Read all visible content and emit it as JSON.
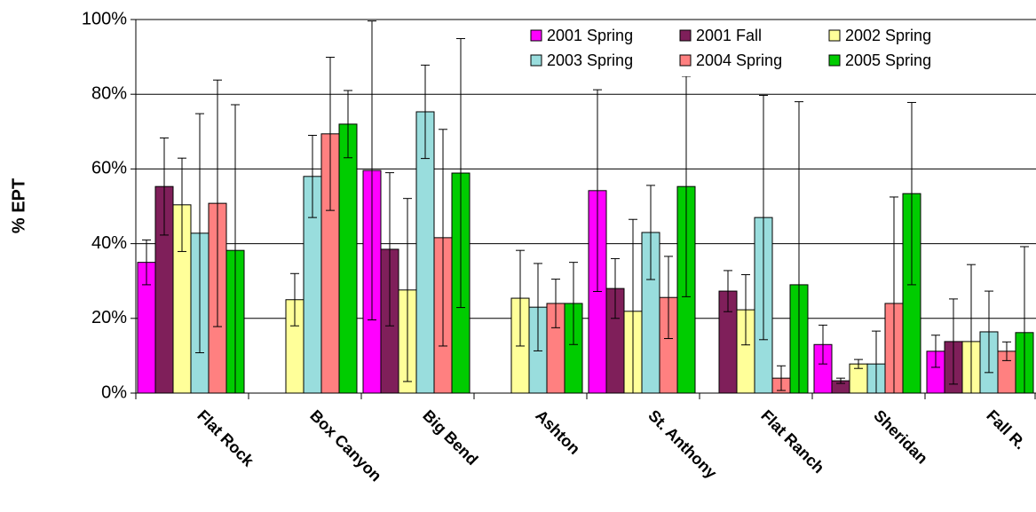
{
  "chart_data": {
    "type": "bar",
    "ylabel": "% EPT",
    "categories": [
      "Flat Rock",
      "Box Canyon",
      "Big Bend",
      "Ashton",
      "St. Anthony",
      "Flat Ranch",
      "Sheridan",
      "Fall R."
    ],
    "ylim": [
      0,
      100
    ],
    "yticks": [
      {
        "value": 0,
        "label": "0%"
      },
      {
        "value": 20,
        "label": "20%"
      },
      {
        "value": 40,
        "label": "40%"
      },
      {
        "value": 60,
        "label": "60%"
      },
      {
        "value": 80,
        "label": "80%"
      },
      {
        "value": 100,
        "label": "100%"
      }
    ],
    "grid": true,
    "series": [
      {
        "name": "2001 Spring",
        "color": "#ff00ff",
        "values": [
          35,
          null,
          59.6,
          null,
          54.2,
          null,
          13,
          11.2
        ],
        "errors": [
          6,
          null,
          40,
          null,
          27,
          null,
          5.2,
          4.3
        ]
      },
      {
        "name": "2001 Fall",
        "color": "#7f1f5a",
        "values": [
          55.3,
          null,
          38.5,
          null,
          28,
          27.3,
          3.3,
          13.8
        ],
        "errors": [
          13,
          null,
          20.5,
          null,
          8,
          5.5,
          0.7,
          11.4
        ]
      },
      {
        "name": "2002 Spring",
        "color": "#ffff99",
        "values": [
          50.4,
          25,
          27.6,
          25.4,
          21.9,
          22.3,
          7.8,
          13.8
        ],
        "errors": [
          12.5,
          7,
          24.5,
          12.8,
          24.6,
          9.4,
          1.2,
          20.6
        ]
      },
      {
        "name": "2003 Spring",
        "color": "#99dddd",
        "values": [
          42.8,
          58,
          75.3,
          23,
          43,
          47,
          7.8,
          16.4
        ],
        "errors": [
          32,
          11,
          12.5,
          11.7,
          12.6,
          32.7,
          8.8,
          10.9
        ]
      },
      {
        "name": "2004 Spring",
        "color": "#ff8080",
        "values": [
          50.8,
          69.4,
          41.6,
          24,
          25.6,
          4,
          24,
          11.2
        ],
        "errors": [
          33,
          20.5,
          29,
          6.5,
          11,
          3.3,
          28.5,
          2.5
        ]
      },
      {
        "name": "2005 Spring",
        "color": "#00cc00",
        "values": [
          38.2,
          72,
          58.9,
          24,
          55.3,
          29,
          53.4,
          16.2
        ],
        "errors": [
          39,
          9,
          36,
          11,
          29.5,
          49,
          24.4,
          23
        ]
      }
    ]
  }
}
